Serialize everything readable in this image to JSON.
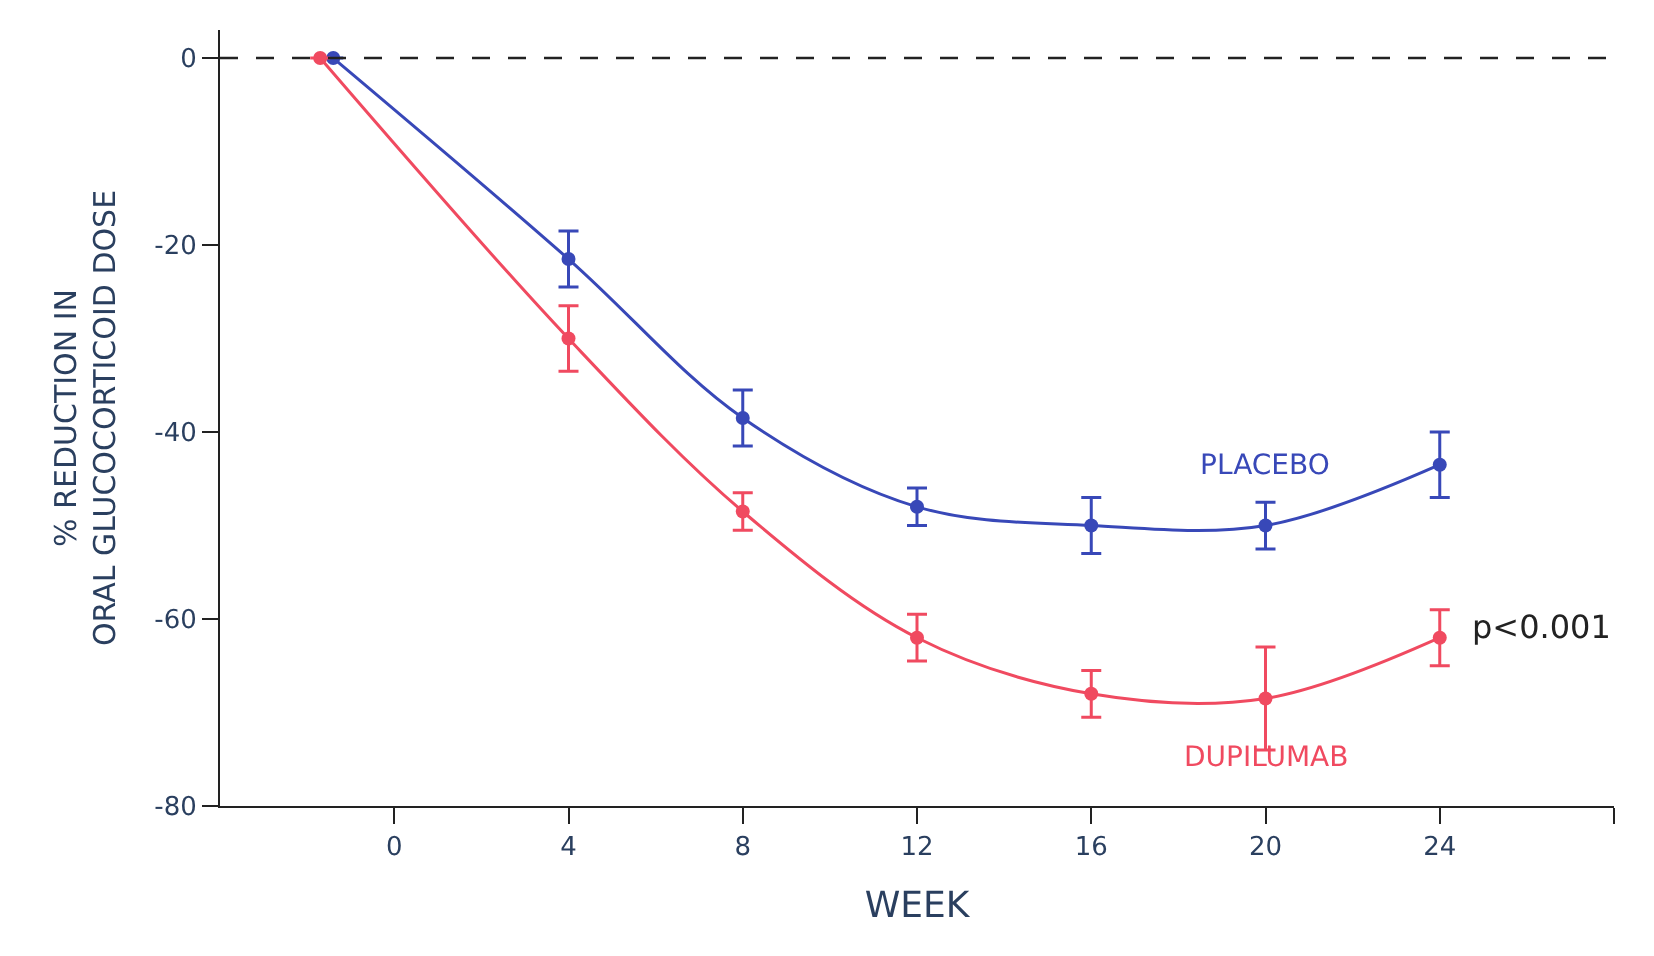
{
  "chart_data": {
    "type": "line",
    "xlabel": "WEEK",
    "ylabel": "% REDUCTION IN\nORAL GLUCOCORTICOID DOSE",
    "xlim": [
      -4,
      28
    ],
    "xticks": [
      0,
      4,
      8,
      12,
      16,
      20,
      24,
      {
        "value": 28,
        "label": null
      }
    ],
    "ylim": [
      -80,
      3
    ],
    "yticks": [
      0,
      -20,
      -40,
      -60,
      -80
    ],
    "series": [
      {
        "name": "PLACEBO",
        "color": "#3848b8",
        "x": [
          -1.4,
          4,
          8,
          12,
          16,
          20,
          24
        ],
        "values": [
          0,
          -21.5,
          -38.5,
          -48,
          -50,
          -50,
          -43.5
        ],
        "errors": [
          null,
          3,
          3,
          2,
          3,
          2.5,
          3.5
        ]
      },
      {
        "name": "DUPILUMAB",
        "color": "#f04a60",
        "x": [
          -1.7,
          4,
          8,
          12,
          16,
          20,
          24
        ],
        "values": [
          0,
          -30,
          -48.5,
          -62,
          -68,
          -68.5,
          -62
        ],
        "errors": [
          null,
          3.5,
          2,
          2.5,
          2.5,
          5.5,
          3
        ]
      }
    ],
    "ref_lines": [
      {
        "axis": "y",
        "value": 0,
        "label": null,
        "color": "#222222",
        "line_style": "dashed"
      }
    ],
    "annotations": [
      "p<0.001"
    ],
    "marker": "circle",
    "line_style": "solid"
  }
}
